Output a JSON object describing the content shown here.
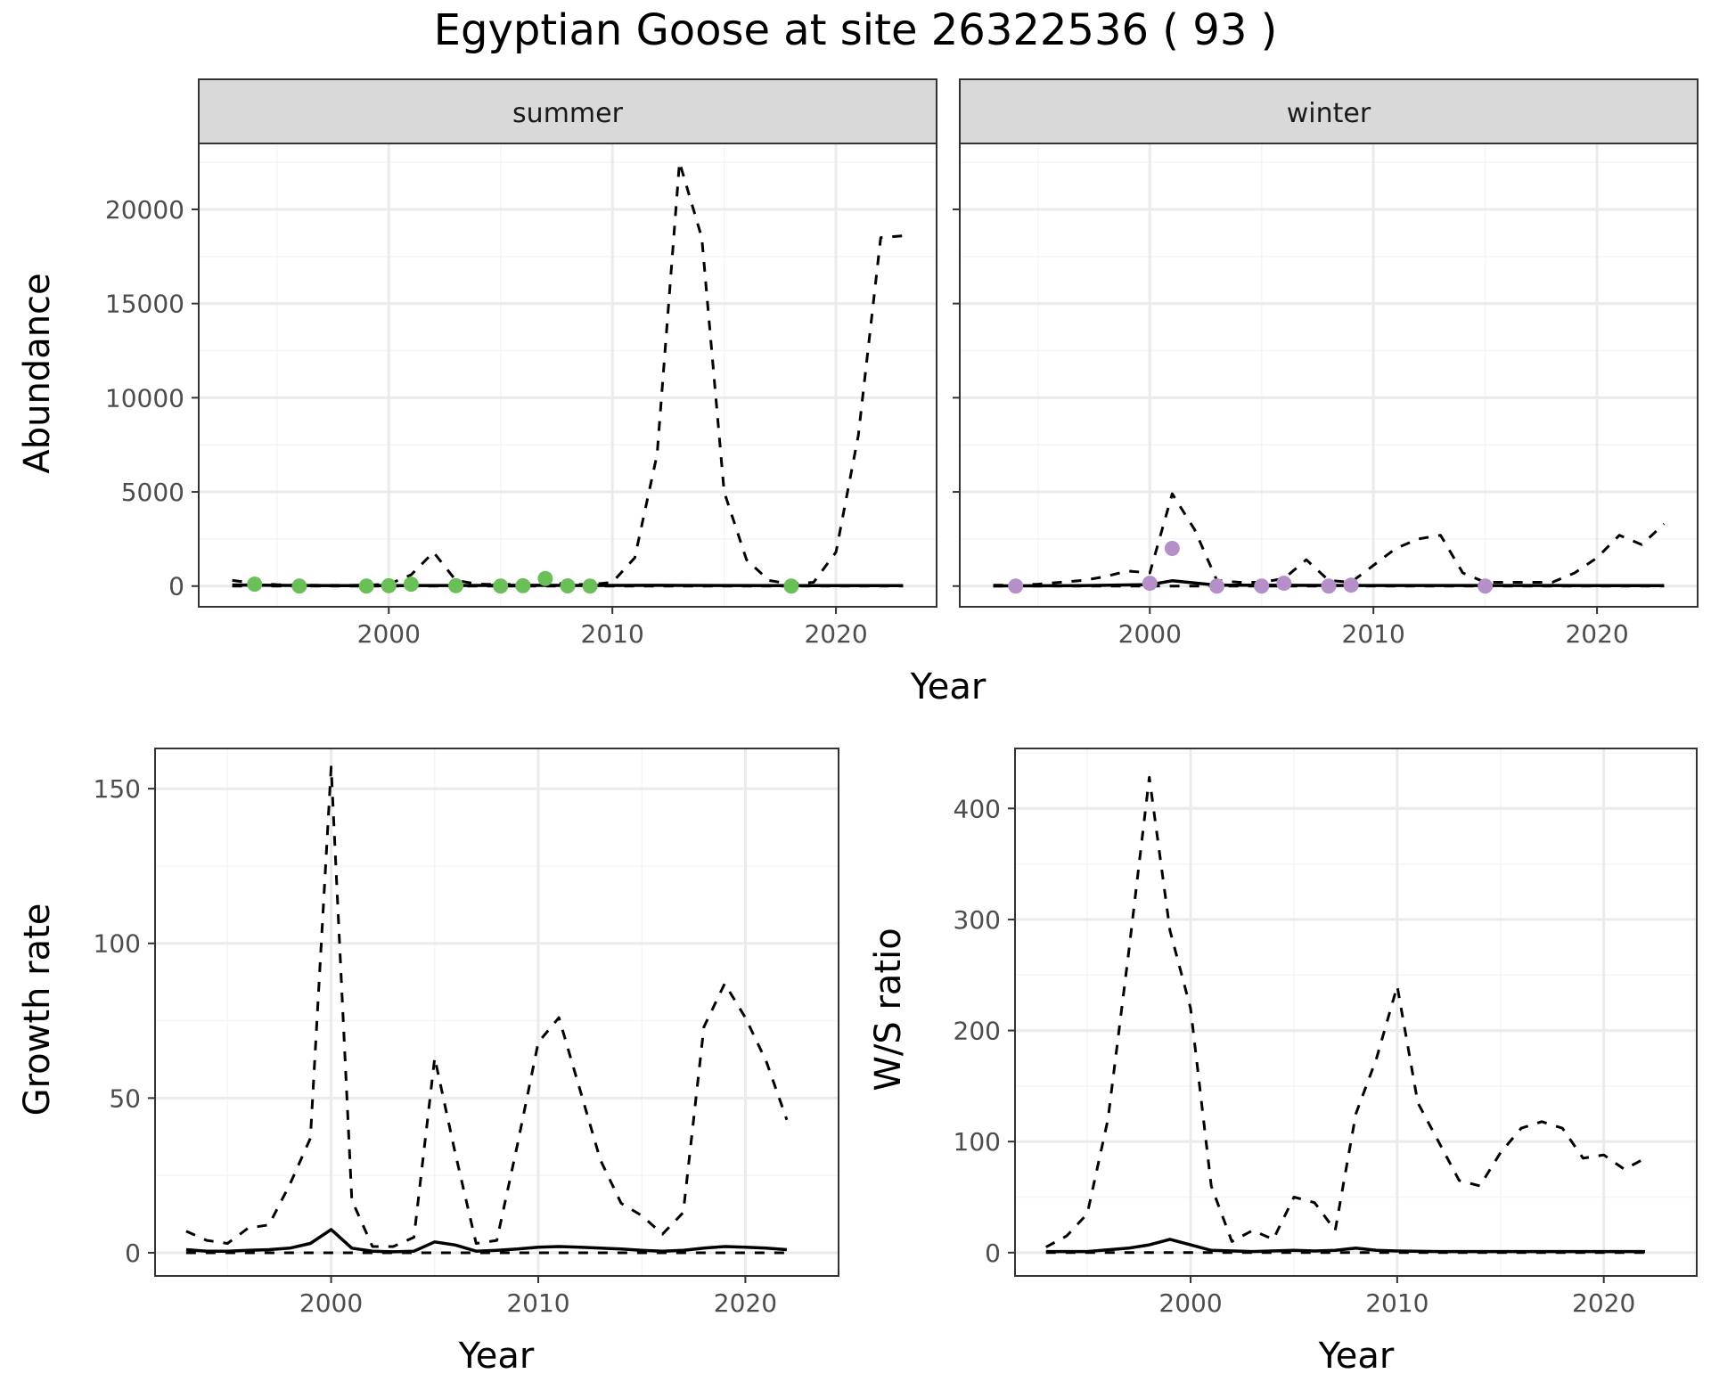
{
  "title": "Egyptian Goose at site 26322536 ( 93 )",
  "colors": {
    "summer_points": "#6bbf59",
    "winter_points": "#b58fc7",
    "line": "#000000",
    "grid_major": "#ebebeb",
    "grid_minor": "#f5f5f5",
    "strip_bg": "#d9d9d9"
  },
  "chart_data": [
    {
      "id": "abundance-summer",
      "type": "line",
      "facet": "summer",
      "xlabel": "",
      "ylabel": "Abundance",
      "xlim": [
        1991.5,
        2024.5
      ],
      "ylim": [
        -1100,
        23500
      ],
      "xticks": [
        2000,
        2010,
        2020
      ],
      "yticks": [
        0,
        5000,
        10000,
        15000,
        20000
      ],
      "ytick_labels": [
        "0",
        "5000",
        "10000",
        "15000",
        "20000"
      ],
      "series": [
        {
          "name": "upper bound",
          "style": "dashed",
          "x": [
            1993,
            1994,
            1995,
            1996,
            1997,
            1998,
            1999,
            2000,
            2001,
            2002,
            2003,
            2004,
            2005,
            2006,
            2007,
            2008,
            2009,
            2010,
            2011,
            2012,
            2013,
            2014,
            2015,
            2016,
            2017,
            2018,
            2019,
            2020,
            2021,
            2022,
            2023
          ],
          "y": [
            300,
            150,
            80,
            50,
            40,
            40,
            50,
            100,
            600,
            1800,
            300,
            100,
            80,
            100,
            200,
            100,
            80,
            200,
            1500,
            7000,
            22500,
            18500,
            5000,
            1400,
            300,
            100,
            200,
            1800,
            8000,
            18500,
            18600
          ]
        },
        {
          "name": "estimate",
          "style": "solid",
          "x": [
            1993,
            1996,
            2000,
            2003,
            2006,
            2009,
            2012,
            2015,
            2018,
            2021,
            2023
          ],
          "y": [
            60,
            30,
            20,
            30,
            40,
            30,
            40,
            30,
            20,
            20,
            20
          ]
        },
        {
          "name": "lower bound",
          "style": "dashed",
          "x": [
            1993,
            2023
          ],
          "y": [
            0,
            0
          ]
        },
        {
          "name": "observed",
          "style": "points",
          "x": [
            1994,
            1996,
            1999,
            2000,
            2001,
            2003,
            2005,
            2006,
            2007,
            2008,
            2009,
            2018
          ],
          "y": [
            100,
            0,
            0,
            20,
            100,
            20,
            0,
            20,
            400,
            10,
            0,
            0
          ]
        }
      ]
    },
    {
      "id": "abundance-winter",
      "type": "line",
      "facet": "winter",
      "xlabel": "",
      "ylabel": "",
      "xlim": [
        1991.5,
        2024.5
      ],
      "ylim": [
        -1100,
        23500
      ],
      "xticks": [
        2000,
        2010,
        2020
      ],
      "yticks": [
        0,
        5000,
        10000,
        15000,
        20000
      ],
      "series": [
        {
          "name": "upper bound",
          "style": "dashed",
          "x": [
            1993,
            1994,
            1995,
            1996,
            1997,
            1998,
            1999,
            2000,
            2001,
            2002,
            2003,
            2004,
            2005,
            2006,
            2007,
            2008,
            2009,
            2010,
            2011,
            2012,
            2013,
            2014,
            2015,
            2016,
            2017,
            2018,
            2019,
            2020,
            2021,
            2022,
            2023
          ],
          "y": [
            50,
            50,
            100,
            200,
            300,
            500,
            800,
            700,
            4900,
            3000,
            300,
            200,
            200,
            400,
            1400,
            300,
            200,
            1100,
            2000,
            2500,
            2700,
            700,
            200,
            200,
            200,
            200,
            700,
            1500,
            2700,
            2200,
            3300
          ]
        },
        {
          "name": "estimate",
          "style": "solid",
          "x": [
            1993,
            1997,
            2000,
            2001,
            2003,
            2006,
            2009,
            2012,
            2015,
            2018,
            2021,
            2023
          ],
          "y": [
            10,
            20,
            80,
            280,
            50,
            40,
            30,
            30,
            30,
            30,
            20,
            20
          ]
        },
        {
          "name": "lower bound",
          "style": "dashed",
          "x": [
            1993,
            2023
          ],
          "y": [
            0,
            0
          ]
        },
        {
          "name": "observed",
          "style": "points",
          "x": [
            1994,
            2000,
            2001,
            2003,
            2005,
            2006,
            2008,
            2009,
            2015
          ],
          "y": [
            0,
            150,
            2000,
            0,
            0,
            150,
            0,
            50,
            0
          ]
        }
      ]
    },
    {
      "id": "growth-rate",
      "type": "line",
      "facet": "",
      "xlabel": "Year",
      "ylabel": "Growth rate",
      "xlim": [
        1991.5,
        2024.5
      ],
      "ylim": [
        -7.5,
        163
      ],
      "xticks": [
        2000,
        2010,
        2020
      ],
      "yticks": [
        0,
        50,
        100,
        150
      ],
      "ytick_labels": [
        "0",
        "50",
        "100",
        "150"
      ],
      "series": [
        {
          "name": "upper bound",
          "style": "dashed",
          "x": [
            1993,
            1994,
            1995,
            1996,
            1997,
            1998,
            1999,
            2000,
            2001,
            2002,
            2003,
            2004,
            2005,
            2006,
            2007,
            2008,
            2009,
            2010,
            2011,
            2012,
            2013,
            2014,
            2015,
            2016,
            2017,
            2018,
            2019,
            2020,
            2021,
            2022
          ],
          "y": [
            7,
            4,
            3,
            8,
            9,
            22,
            37,
            157,
            17,
            2,
            2,
            5,
            63,
            32,
            3,
            4,
            35,
            68,
            76,
            53,
            30,
            16,
            12,
            6,
            13,
            73,
            87,
            76,
            62,
            43
          ]
        },
        {
          "name": "estimate",
          "style": "solid",
          "x": [
            1993,
            1994,
            1995,
            1996,
            1997,
            1998,
            1999,
            2000,
            2001,
            2002,
            2003,
            2004,
            2005,
            2006,
            2007,
            2008,
            2009,
            2010,
            2011,
            2012,
            2013,
            2014,
            2015,
            2016,
            2017,
            2018,
            2019,
            2020,
            2021,
            2022
          ],
          "y": [
            1,
            0.5,
            0.5,
            0.8,
            1,
            1.5,
            3,
            7.5,
            1.5,
            0.5,
            0.3,
            0.5,
            3.5,
            2.5,
            0.5,
            0.8,
            1.2,
            1.8,
            2,
            1.8,
            1.5,
            1.2,
            0.8,
            0.5,
            0.8,
            1.5,
            2,
            1.8,
            1.5,
            1
          ]
        },
        {
          "name": "lower bound",
          "style": "dashed",
          "x": [
            1993,
            2022
          ],
          "y": [
            0,
            0
          ]
        }
      ]
    },
    {
      "id": "ws-ratio",
      "type": "line",
      "facet": "",
      "xlabel": "Year",
      "ylabel": "W/S ratio",
      "xlim": [
        1991.5,
        2024.5
      ],
      "ylim": [
        -21,
        454
      ],
      "xticks": [
        2000,
        2010,
        2020
      ],
      "yticks": [
        0,
        100,
        200,
        300,
        400
      ],
      "ytick_labels": [
        "0",
        "100",
        "200",
        "300",
        "400"
      ],
      "series": [
        {
          "name": "upper bound",
          "style": "dashed",
          "x": [
            1993,
            1994,
            1995,
            1996,
            1997,
            1998,
            1999,
            2000,
            2001,
            2002,
            2003,
            2004,
            2005,
            2006,
            2007,
            2008,
            2009,
            2010,
            2011,
            2012,
            2013,
            2014,
            2015,
            2016,
            2017,
            2018,
            2019,
            2020,
            2021,
            2022
          ],
          "y": [
            5,
            15,
            35,
            120,
            270,
            428,
            290,
            220,
            60,
            10,
            20,
            12,
            50,
            45,
            20,
            125,
            175,
            240,
            135,
            100,
            65,
            60,
            90,
            112,
            118,
            112,
            85,
            88,
            75,
            85
          ]
        },
        {
          "name": "estimate",
          "style": "solid",
          "x": [
            1993,
            1995,
            1997,
            1998,
            1999,
            2000,
            2001,
            2003,
            2005,
            2006,
            2007,
            2008,
            2009,
            2010,
            2012,
            2015,
            2018,
            2022
          ],
          "y": [
            1,
            1,
            4,
            7,
            12,
            7,
            2,
            1,
            2,
            1.5,
            2,
            4,
            2,
            1.5,
            1,
            1,
            1,
            1
          ]
        },
        {
          "name": "lower bound",
          "style": "dashed",
          "x": [
            1993,
            2022
          ],
          "y": [
            0,
            0
          ]
        }
      ]
    }
  ],
  "labels": {
    "summer": "summer",
    "winter": "winter",
    "year_top": "Year",
    "year_bottom_left": "Year",
    "year_bottom_right": "Year"
  }
}
